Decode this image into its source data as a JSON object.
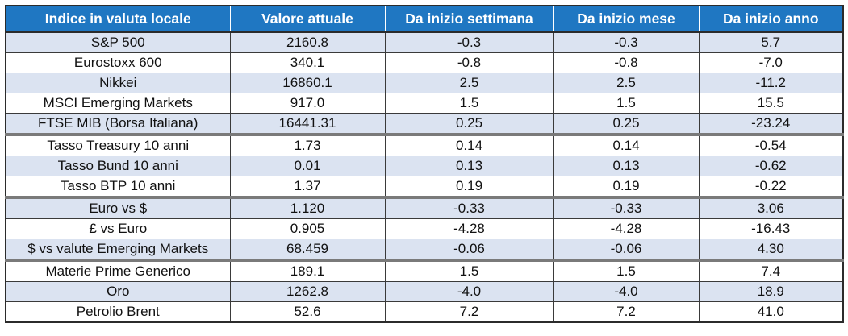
{
  "table": {
    "headers": [
      "Indice in valuta locale",
      "Valore attuale",
      "Da inizio settimana",
      "Da inizio mese",
      "Da inizio anno"
    ],
    "rows": [
      [
        "S&P 500",
        "2160.8",
        "-0.3",
        "-0.3",
        "5.7"
      ],
      [
        "Eurostoxx 600",
        "340.1",
        "-0.8",
        "-0.8",
        "-7.0"
      ],
      [
        "Nikkei",
        "16860.1",
        "2.5",
        "2.5",
        "-11.2"
      ],
      [
        "MSCI Emerging Markets",
        "917.0",
        "1.5",
        "1.5",
        "15.5"
      ],
      [
        "FTSE MIB (Borsa Italiana)",
        "16441.31",
        "0.25",
        "0.25",
        "-23.24"
      ],
      [
        "Tasso Treasury  10 anni",
        "1.73",
        "0.14",
        "0.14",
        "-0.54"
      ],
      [
        "Tasso Bund 10 anni",
        "0.01",
        "0.13",
        "0.13",
        "-0.62"
      ],
      [
        "Tasso BTP 10 anni",
        "1.37",
        "0.19",
        "0.19",
        "-0.22"
      ],
      [
        "Euro vs $",
        "1.120",
        "-0.33",
        "-0.33",
        "3.06"
      ],
      [
        "£ vs Euro",
        "0.905",
        "-4.28",
        "-4.28",
        "-16.43"
      ],
      [
        "$ vs valute Emerging Markets",
        "68.459",
        "-0.06",
        "-0.06",
        "4.30"
      ],
      [
        "Materie Prime Generico",
        "189.1",
        "1.5",
        "1.5",
        "7.4"
      ],
      [
        "Oro",
        "1262.8",
        "-4.0",
        "-4.0",
        "18.9"
      ],
      [
        "Petrolio Brent",
        "52.6",
        "7.2",
        "7.2",
        "41.0"
      ]
    ]
  },
  "colors": {
    "header_bg": "#1f77c2",
    "header_text": "#ffffff",
    "shaded_row_bg": "#dbe3f1",
    "plain_row_bg": "#ffffff"
  }
}
